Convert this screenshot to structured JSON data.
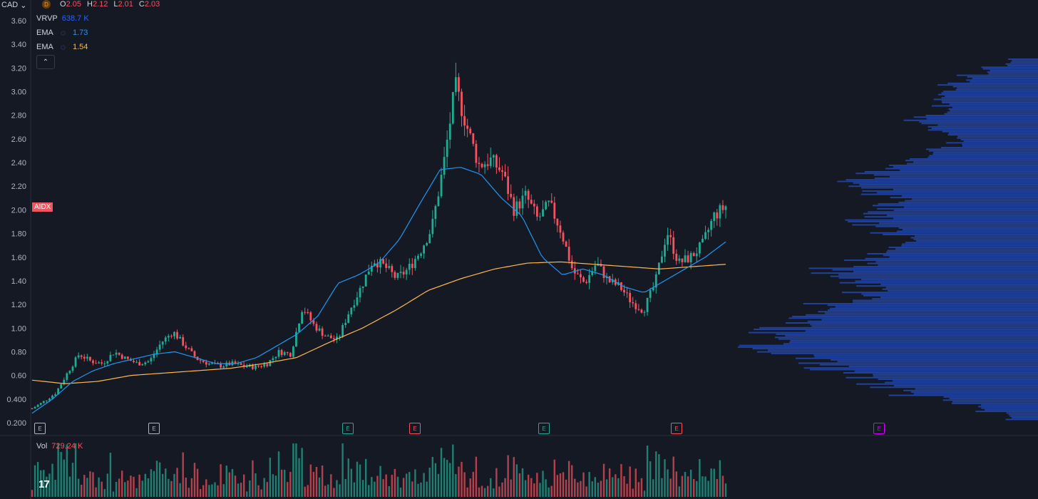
{
  "header": {
    "currency": "CAD",
    "interval_badge": "D",
    "ohlc": [
      {
        "key": "O",
        "value": "2.05"
      },
      {
        "key": "H",
        "value": "2.12"
      },
      {
        "key": "L",
        "value": "2.01"
      },
      {
        "key": "C",
        "value": "2.03"
      }
    ]
  },
  "legend": {
    "vrvp": {
      "name": "VRVP",
      "value": "638.7 K",
      "color": "#2962ff"
    },
    "ema1": {
      "name": "EMA",
      "value": "1.73",
      "color": "#2196f3"
    },
    "ema2": {
      "name": "EMA",
      "value": "1.54",
      "color": "#ffb74d"
    },
    "collapse_icon": "chevron-up-icon"
  },
  "symbol_tag": "AIDX",
  "volume_legend": {
    "name": "Vol",
    "value": "729.24 K"
  },
  "earnings_badges": [
    {
      "label": "E",
      "color": "#b2b5be"
    },
    {
      "label": "E",
      "color": "#b2b5be"
    },
    {
      "label": "E",
      "color": "#22ab94"
    },
    {
      "label": "E",
      "color": "#f7525f"
    },
    {
      "label": "E",
      "color": "#22ab94"
    },
    {
      "label": "E",
      "color": "#f7525f"
    },
    {
      "label": "E",
      "color": "#d500f9"
    }
  ],
  "logo": "17",
  "chart_data": {
    "type": "candlestick",
    "y_ticks": [
      "3.60",
      "3.40",
      "3.20",
      "3.00",
      "2.80",
      "2.60",
      "2.40",
      "2.20",
      "2.00",
      "1.80",
      "1.60",
      "1.40",
      "1.20",
      "1.00",
      "0.80",
      "0.60",
      "0.400",
      "0.200"
    ],
    "ylim": [
      0.2,
      3.6
    ],
    "colors": {
      "up": "#22ab94",
      "down": "#f7525f",
      "ema_fast": "#2196f3",
      "ema_slow": "#ffb74d",
      "vrvp": "#2962ff"
    },
    "close_anchors": [
      0.32,
      0.38,
      0.45,
      0.62,
      0.78,
      0.72,
      0.7,
      0.8,
      0.74,
      0.7,
      0.72,
      0.88,
      0.97,
      0.85,
      0.74,
      0.7,
      0.68,
      0.7,
      0.68,
      0.67,
      0.7,
      0.8,
      0.78,
      1.18,
      1.02,
      0.93,
      0.9,
      1.15,
      1.35,
      1.58,
      1.52,
      1.42,
      1.5,
      1.65,
      1.85,
      2.38,
      3.05,
      2.7,
      2.38,
      2.42,
      2.32,
      2.0,
      2.12,
      1.92,
      2.05,
      1.82,
      1.48,
      1.38,
      1.55,
      1.4,
      1.35,
      1.22,
      1.15,
      1.38,
      1.82,
      1.55,
      1.6,
      1.7,
      1.95,
      2.03
    ],
    "ema_fast_anchors": [
      0.28,
      0.4,
      0.55,
      0.64,
      0.7,
      0.74,
      0.78,
      0.8,
      0.75,
      0.7,
      0.7,
      0.75,
      0.85,
      0.95,
      1.1,
      1.38,
      1.45,
      1.55,
      1.75,
      2.05,
      2.34,
      2.36,
      2.3,
      2.1,
      1.95,
      1.6,
      1.45,
      1.5,
      1.45,
      1.35,
      1.3,
      1.4,
      1.5,
      1.6,
      1.73
    ],
    "ema_slow_anchors": [
      0.56,
      0.53,
      0.55,
      0.6,
      0.62,
      0.64,
      0.66,
      0.7,
      0.75,
      0.88,
      1.0,
      1.15,
      1.32,
      1.42,
      1.5,
      1.55,
      1.56,
      1.54,
      1.52,
      1.5,
      1.52,
      1.54
    ],
    "vrvp_profile": [
      0.1,
      0.18,
      0.25,
      0.3,
      0.35,
      0.32,
      0.28,
      0.4,
      0.35,
      0.3,
      0.28,
      0.35,
      0.4,
      0.5,
      0.55,
      0.6,
      0.55,
      0.45,
      0.5,
      0.55,
      0.6,
      0.5,
      0.4,
      0.45,
      0.55,
      0.6,
      0.7,
      0.65,
      0.55,
      0.6,
      0.7,
      0.75,
      0.8,
      0.85,
      0.95,
      0.9,
      0.85,
      0.75,
      0.7,
      0.6,
      0.55,
      0.45,
      0.3,
      0.2,
      0.1
    ]
  }
}
